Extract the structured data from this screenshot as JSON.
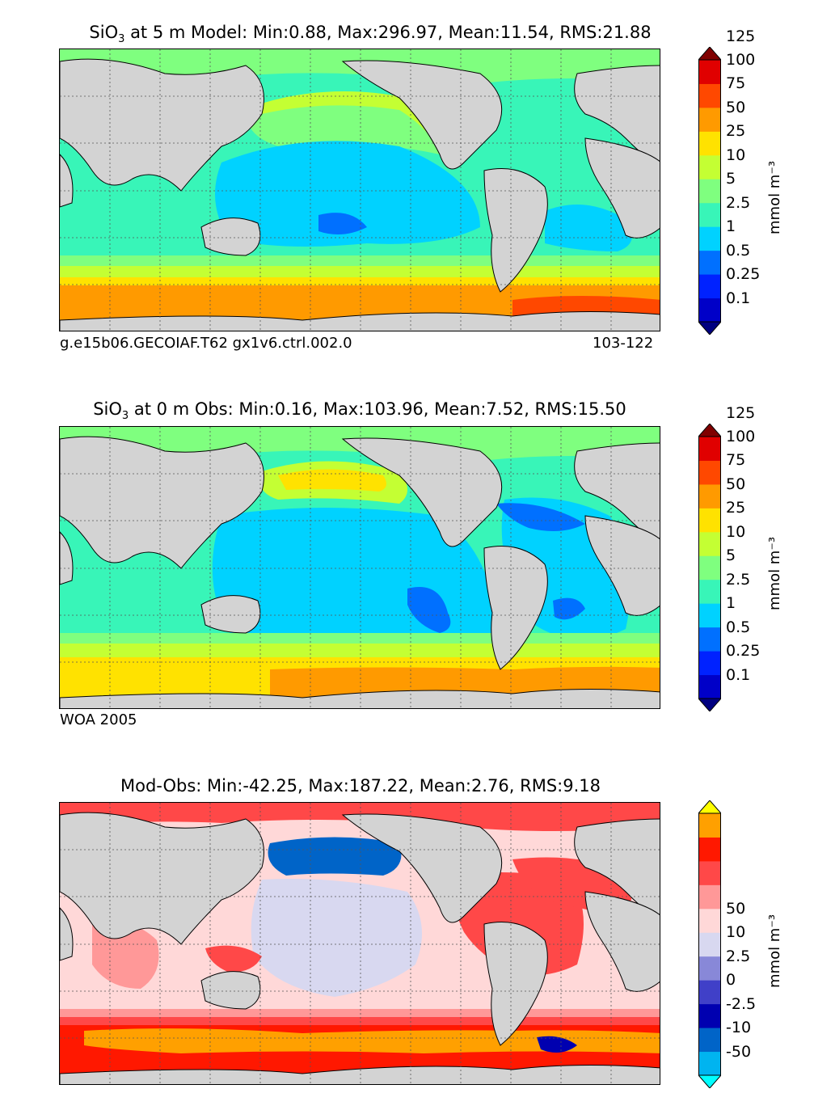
{
  "panels": [
    {
      "title_species": "SiO",
      "title_sub": "3",
      "title_rest": " at 5 m Model: Min:0.88, Max:296.97, Mean:11.54, RMS:21.88",
      "footer_left": "g.e15b06.GECOIAF.T62 gx1v6.ctrl.002.0",
      "footer_right": "103-122",
      "colorbar_ticks": [
        "125",
        "100",
        "75",
        "50",
        "25",
        "10",
        "5",
        "2.5",
        "1",
        "0.5",
        "0.25",
        "0.1"
      ],
      "colorbar_colors": [
        "#000080",
        "#0000c8",
        "#0022ff",
        "#0070ff",
        "#00d2ff",
        "#38f5b8",
        "#7fff7f",
        "#c4ff33",
        "#ffe200",
        "#ff9a00",
        "#ff4800",
        "#e00000",
        "#800000"
      ],
      "unit_label": "mmol m⁻³"
    },
    {
      "title_species": "SiO",
      "title_sub": "3",
      "title_rest": " at 0 m Obs: Min:0.16, Max:103.96, Mean:7.52, RMS:15.50",
      "footer_left": "WOA 2005",
      "colorbar_ticks": [
        "125",
        "100",
        "75",
        "50",
        "25",
        "10",
        "5",
        "2.5",
        "1",
        "0.5",
        "0.25",
        "0.1"
      ],
      "colorbar_colors": [
        "#000080",
        "#0000c8",
        "#0022ff",
        "#0070ff",
        "#00d2ff",
        "#38f5b8",
        "#7fff7f",
        "#c4ff33",
        "#ffe200",
        "#ff9a00",
        "#ff4800",
        "#e00000",
        "#800000"
      ],
      "unit_label": "mmol m⁻³"
    },
    {
      "title_text": "Mod-Obs: Min:-42.25, Max:187.22, Mean:2.76, RMS:9.18",
      "colorbar_ticks": [
        "50",
        "10",
        "2.5",
        "0",
        "-2.5",
        "-10",
        "-50"
      ],
      "colorbar_colors": [
        "#00ffff",
        "#00b4f0",
        "#0064c8",
        "#0000b0",
        "#4040c8",
        "#8888d8",
        "#d8d8f0",
        "#ffd8d8",
        "#ff9898",
        "#ff4848",
        "#ff1800",
        "#ffa000",
        "#ffff00"
      ],
      "unit_label": "mmol m⁻³"
    }
  ]
}
